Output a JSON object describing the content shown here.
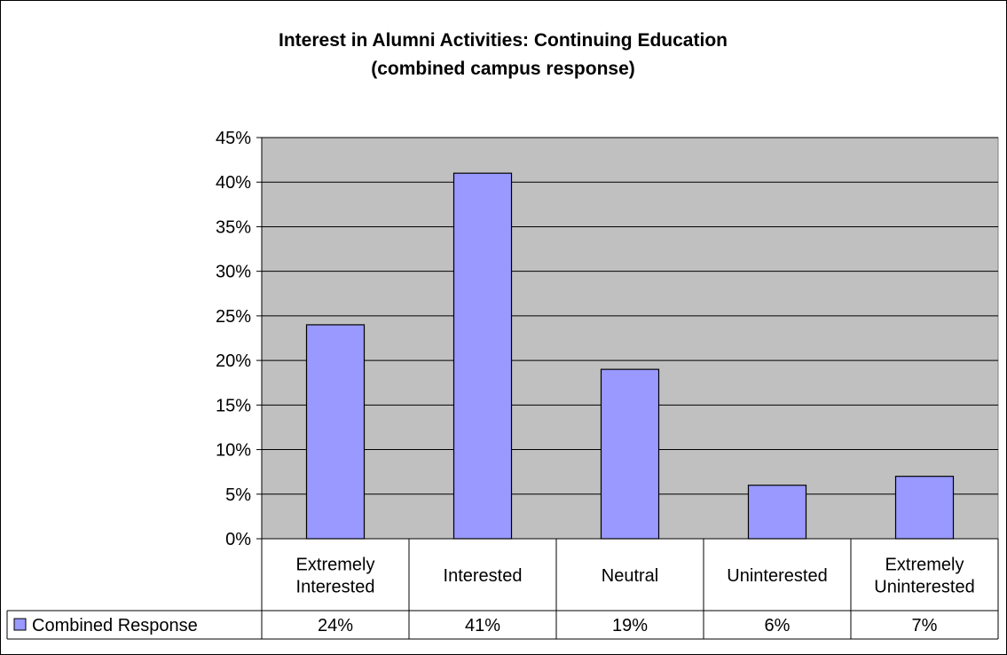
{
  "chart_data": {
    "type": "bar",
    "title": "Interest in Alumni Activities: Continuing Education",
    "subtitle": "(combined campus response)",
    "categories": [
      [
        "Extremely",
        "Interested"
      ],
      [
        "Interested"
      ],
      [
        "Neutral"
      ],
      [
        "Uninterested"
      ],
      [
        "Extremely",
        "Uninterested"
      ]
    ],
    "series": [
      {
        "name": "Combined Response",
        "values": [
          24,
          41,
          19,
          6,
          7
        ],
        "table_labels": [
          "24%",
          "41%",
          "19%",
          "6%",
          "7%"
        ],
        "color": "#9999ff"
      }
    ],
    "ylim": [
      0,
      45
    ],
    "yticks": [
      "0%",
      "5%",
      "10%",
      "15%",
      "20%",
      "25%",
      "30%",
      "35%",
      "40%",
      "45%"
    ],
    "grid": true,
    "plot_background": "#c0c0c0",
    "legend": "data-table"
  }
}
